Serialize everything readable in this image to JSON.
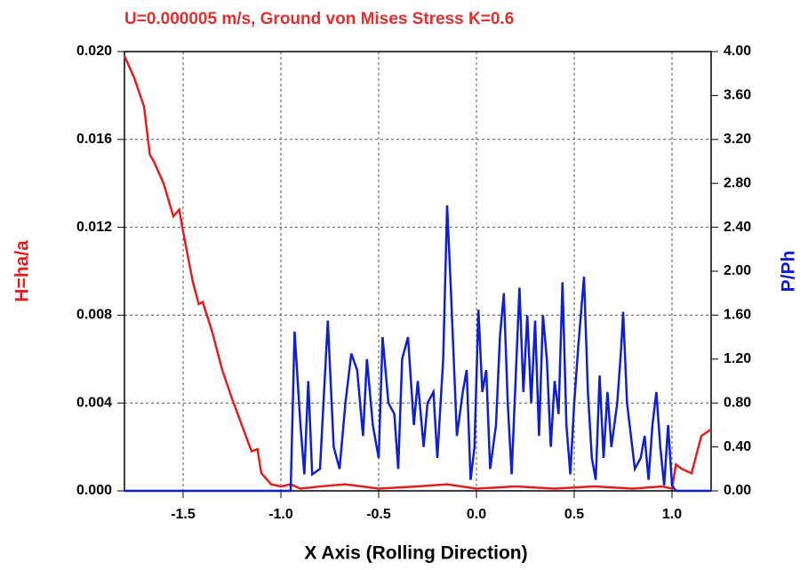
{
  "chart_data": {
    "type": "line",
    "title": "U=0.000005 m/s, Ground von Mises Stress K=0.6",
    "x_label": "X Axis (Rolling Direction)",
    "y_label": "H=ha/a",
    "y2_label": "P/Ph",
    "xlim": [
      -1.8,
      1.2
    ],
    "xticks": [
      -1.5,
      {
        "value": -1,
        "label": "-1.0"
      },
      -0.5,
      {
        "value": 0,
        "label": "0.0"
      },
      0.5,
      {
        "value": 1,
        "label": "1.0"
      }
    ],
    "ylim": [
      0,
      0.02
    ],
    "yticks": [
      {
        "value": 0,
        "label": "0.000"
      },
      {
        "value": 0.004,
        "label": "0.004"
      },
      {
        "value": 0.008,
        "label": "0.008"
      },
      {
        "value": 0.012,
        "label": "0.012"
      },
      {
        "value": 0.016,
        "label": "0.016"
      },
      {
        "value": 0.02,
        "label": "0.020"
      }
    ],
    "y2lim": [
      0,
      4
    ],
    "y2ticks": [
      {
        "value": 0,
        "label": "0.00"
      },
      {
        "value": 0.4,
        "label": "0.40"
      },
      {
        "value": 0.8,
        "label": "0.80"
      },
      {
        "value": 1.2,
        "label": "1.20"
      },
      {
        "value": 1.6,
        "label": "1.60"
      },
      {
        "value": 2,
        "label": "2.00"
      },
      {
        "value": 2.4,
        "label": "2.40"
      },
      {
        "value": 2.8,
        "label": "2.80"
      },
      {
        "value": 3.2,
        "label": "3.20"
      },
      {
        "value": 3.6,
        "label": "3.60"
      },
      {
        "value": 4,
        "label": "4.00"
      }
    ],
    "grid": true,
    "series": [
      {
        "color": "#e02020",
        "x": [
          -1.8,
          -1.75,
          -1.7,
          -1.67,
          -1.65,
          -1.6,
          -1.55,
          -1.52,
          -1.5,
          -1.45,
          -1.42,
          -1.4,
          -1.35,
          -1.3,
          -1.25,
          -1.2,
          -1.15,
          -1.12,
          -1.1,
          -1.05,
          -1.0,
          -0.95,
          -0.9,
          -0.8,
          -0.67,
          -0.5,
          -0.3,
          -0.15,
          0.0,
          0.2,
          0.4,
          0.6,
          0.8,
          0.95,
          1.0,
          1.02,
          1.05,
          1.1,
          1.15,
          1.2
        ],
        "values": [
          0.0198,
          0.0188,
          0.0175,
          0.0153,
          0.015,
          0.014,
          0.0125,
          0.0128,
          0.0118,
          0.0095,
          0.0085,
          0.0086,
          0.0072,
          0.0055,
          0.0042,
          0.003,
          0.0018,
          0.0019,
          0.0008,
          0.0003,
          0.0002,
          0.0003,
          0.0001,
          0.0002,
          0.0003,
          0.0001,
          0.0002,
          0.0003,
          0.0001,
          0.0002,
          0.0001,
          0.0002,
          0.0001,
          0.0002,
          0.0001,
          0.0012,
          0.001,
          0.0008,
          0.0025,
          0.0028
        ]
      },
      {
        "color": "#1020d0",
        "axis": "y2",
        "x": [
          -1.8,
          -0.95,
          -0.93,
          -0.9,
          -0.88,
          -0.86,
          -0.84,
          -0.8,
          -0.76,
          -0.73,
          -0.7,
          -0.67,
          -0.64,
          -0.61,
          -0.58,
          -0.56,
          -0.53,
          -0.5,
          -0.48,
          -0.45,
          -0.42,
          -0.4,
          -0.38,
          -0.35,
          -0.32,
          -0.3,
          -0.27,
          -0.25,
          -0.22,
          -0.2,
          -0.17,
          -0.15,
          -0.13,
          -0.1,
          -0.07,
          -0.05,
          -0.03,
          -0.01,
          0.01,
          0.03,
          0.05,
          0.07,
          0.1,
          0.12,
          0.14,
          0.16,
          0.18,
          0.2,
          0.22,
          0.24,
          0.26,
          0.28,
          0.3,
          0.32,
          0.34,
          0.36,
          0.38,
          0.4,
          0.42,
          0.44,
          0.46,
          0.48,
          0.5,
          0.52,
          0.55,
          0.57,
          0.59,
          0.61,
          0.63,
          0.65,
          0.67,
          0.69,
          0.72,
          0.74,
          0.75,
          0.77,
          0.79,
          0.81,
          0.84,
          0.86,
          0.88,
          0.9,
          0.92,
          0.94,
          0.96,
          0.98,
          1.0,
          1.02,
          1.2
        ],
        "values": [
          0,
          0,
          1.45,
          0.6,
          0.15,
          1.0,
          0.15,
          0.2,
          1.55,
          0.4,
          0.2,
          0.8,
          1.25,
          1.1,
          0.5,
          1.2,
          0.6,
          0.3,
          1.4,
          0.8,
          0.7,
          0.2,
          1.2,
          1.4,
          0.6,
          1.0,
          0.4,
          0.8,
          0.9,
          0.3,
          1.2,
          2.6,
          1.8,
          0.5,
          0.9,
          1.1,
          0.1,
          0.4,
          1.65,
          0.9,
          1.1,
          0.2,
          0.6,
          1.4,
          1.8,
          0.8,
          0.15,
          1.0,
          1.85,
          0.9,
          1.6,
          0.8,
          1.55,
          0.5,
          1.6,
          1.2,
          0.4,
          1.0,
          0.7,
          1.9,
          0.6,
          0.15,
          0.8,
          1.3,
          1.95,
          0.9,
          0.3,
          0.1,
          1.05,
          0.3,
          0.9,
          0.4,
          0.8,
          1.3,
          1.63,
          0.8,
          0.5,
          0.2,
          0.3,
          0.5,
          0.1,
          0.6,
          0.9,
          0.4,
          0.05,
          0.6,
          0.05,
          0,
          0
        ]
      }
    ]
  }
}
